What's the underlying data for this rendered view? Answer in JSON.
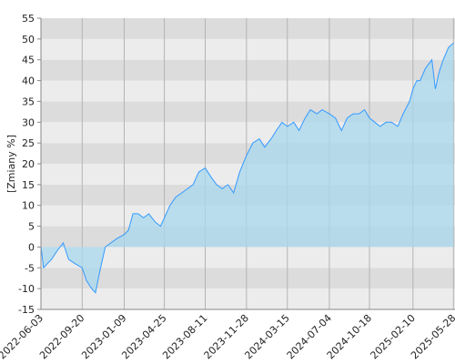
{
  "chart_data": {
    "type": "area",
    "y_label": "[Zmiany %]",
    "x": [
      "2022-06-03",
      "2022-06-10",
      "2022-06-20",
      "2022-07-01",
      "2022-07-15",
      "2022-08-01",
      "2022-08-15",
      "2022-09-01",
      "2022-09-20",
      "2022-10-01",
      "2022-10-15",
      "2022-10-25",
      "2022-11-05",
      "2022-11-20",
      "2022-12-05",
      "2022-12-20",
      "2023-01-09",
      "2023-01-20",
      "2023-02-01",
      "2023-02-15",
      "2023-03-01",
      "2023-03-15",
      "2023-04-01",
      "2023-04-15",
      "2023-04-25",
      "2023-05-10",
      "2023-05-25",
      "2023-06-10",
      "2023-06-25",
      "2023-07-10",
      "2023-07-25",
      "2023-08-11",
      "2023-08-25",
      "2023-09-10",
      "2023-09-25",
      "2023-10-10",
      "2023-10-25",
      "2023-11-10",
      "2023-11-28",
      "2023-12-15",
      "2024-01-01",
      "2024-01-15",
      "2024-02-01",
      "2024-02-15",
      "2024-03-01",
      "2024-03-15",
      "2024-04-01",
      "2024-04-15",
      "2024-05-01",
      "2024-05-15",
      "2024-06-01",
      "2024-06-15",
      "2024-07-04",
      "2024-07-20",
      "2024-08-05",
      "2024-08-20",
      "2024-09-05",
      "2024-09-20",
      "2024-10-05",
      "2024-10-18",
      "2024-11-01",
      "2024-11-15",
      "2024-12-01",
      "2024-12-15",
      "2025-01-01",
      "2025-01-15",
      "2025-02-01",
      "2025-02-10",
      "2025-02-20",
      "2025-03-01",
      "2025-03-15",
      "2025-04-01",
      "2025-04-10",
      "2025-04-20",
      "2025-05-01",
      "2025-05-15",
      "2025-05-28"
    ],
    "series": [
      {
        "name": "Zmiany",
        "color": "#3399ff",
        "fill": "#a8d8ee",
        "values": [
          0,
          -5,
          -4,
          -3,
          -1,
          1,
          -3,
          -4,
          -5,
          -8,
          -10,
          -11,
          -6,
          0,
          1,
          2,
          3,
          4,
          8,
          8,
          7,
          8,
          6,
          5,
          7,
          10,
          12,
          13,
          14,
          15,
          18,
          19,
          17,
          15,
          14,
          15,
          13,
          18,
          22,
          25,
          26,
          24,
          26,
          28,
          30,
          29,
          30,
          28,
          31,
          33,
          32,
          33,
          32,
          31,
          28,
          31,
          32,
          32,
          33,
          31,
          30,
          29,
          30,
          30,
          29,
          32,
          35,
          38,
          40,
          40,
          43,
          45,
          38,
          42,
          45,
          48,
          49
        ]
      }
    ],
    "xlim": [
      "2022-06-03",
      "2025-06-01"
    ],
    "xticks": [
      "2022-06-03",
      "2022-09-20",
      "2023-01-09",
      "2023-04-25",
      "2023-08-11",
      "2023-11-28",
      "2024-03-15",
      "2024-07-04",
      "2024-10-18",
      "2025-02-10",
      "2025-05-28"
    ],
    "ylim": [
      -15,
      55
    ],
    "yticks": [
      -15,
      -10,
      -5,
      0,
      5,
      10,
      15,
      20,
      25,
      30,
      35,
      40,
      45,
      50,
      55
    ],
    "grid": true
  }
}
